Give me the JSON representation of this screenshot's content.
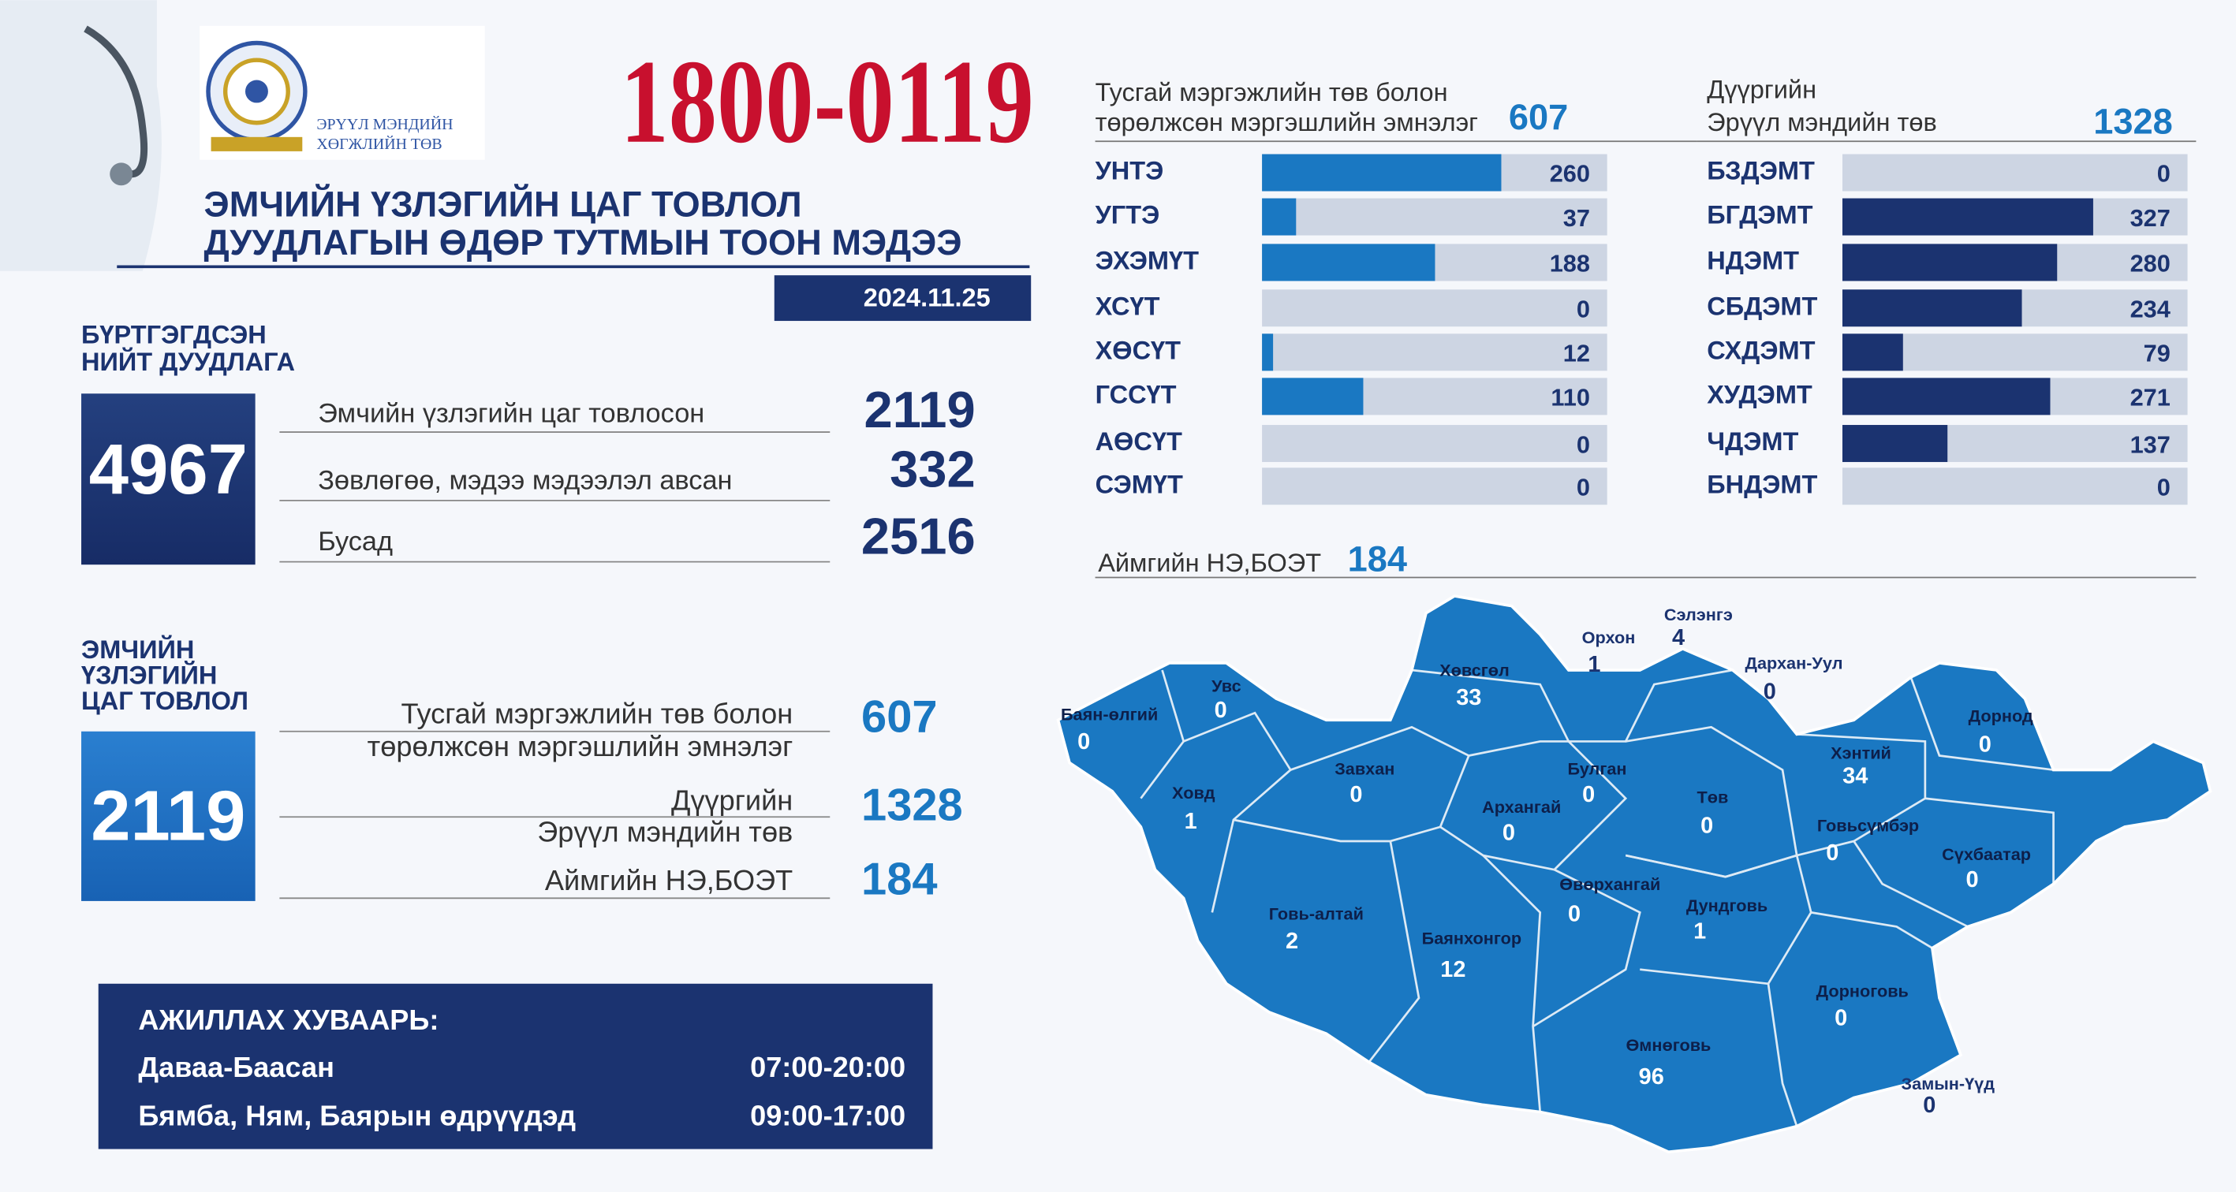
{
  "header": {
    "org": [
      "ЭРҮҮЛ МЭНДИЙН",
      "ХӨГЖЛИЙН ТӨВ"
    ],
    "phone": "1800-0119",
    "title": [
      "ЭМЧИЙН ҮЗЛЭГИЙН ЦАГ  ТОВЛОЛ",
      "ДУУДЛАГЫН ӨДӨР ТУТМЫН ТООН МЭДЭЭ"
    ],
    "date": "2024.11.25"
  },
  "total": {
    "label": [
      "БҮРТГЭГДСЭН",
      "НИЙТ ДУУДЛАГА"
    ],
    "value": 4967,
    "rows": [
      {
        "label": "Эмчийн үзлэгийн цаг товлосон",
        "value": 2119
      },
      {
        "label": "Зөвлөгөө, мэдээ мэдээлэл авсан",
        "value": 332
      },
      {
        "label": "Бусад",
        "value": 2516
      }
    ]
  },
  "appointments": {
    "label": [
      "ЭМЧИЙН",
      "ҮЗЛЭГИЙН",
      "ЦАГ ТОВЛОЛ"
    ],
    "value": 2119,
    "rows": [
      {
        "label": [
          "Тусгай мэргэжлийн төв болон",
          "төрөлжсөн мэргэшлийн эмнэлэг"
        ],
        "value": 607
      },
      {
        "label": [
          "Дүүргийн",
          "Эрүүл мэндийн төв"
        ],
        "value": 1328
      },
      {
        "label": [
          "Аймгийн НЭ,БОЭТ"
        ],
        "value": 184
      }
    ]
  },
  "charts": [
    {
      "type": "bar",
      "title": [
        "Тусгай мэргэжлийн төв болон",
        "төрөлжсөн мэргэшлийн эмнэлэг"
      ],
      "total": 607,
      "categories": [
        "УНТЭ",
        "УГТЭ",
        "ЭХЭМҮТ",
        "ХСҮТ",
        "ХӨСҮТ",
        "ГССҮТ",
        "АӨСҮТ",
        "СЭМҮТ"
      ],
      "values": [
        260,
        37,
        188,
        0,
        12,
        110,
        0,
        0
      ],
      "color": "#1a78c2",
      "xlim": [
        0,
        375
      ]
    },
    {
      "type": "bar",
      "title": [
        "Дүүргийн",
        "Эрүүл мэндийн төв"
      ],
      "total": 1328,
      "categories": [
        "БЗДЭМТ",
        "БГДЭМТ",
        "НДЭМТ",
        "СБДЭМТ",
        "СХДЭМТ",
        "ХУДЭМТ",
        "ЧДЭМТ",
        "БНДЭМТ"
      ],
      "values": [
        0,
        327,
        280,
        234,
        79,
        271,
        137,
        0
      ],
      "color": "#1b3370",
      "xlim": [
        0,
        450
      ]
    }
  ],
  "map": {
    "title": "Аймгийн НЭ,БОЭТ",
    "total": 184,
    "regions": [
      {
        "name": "Баян-өлгий",
        "value": 0
      },
      {
        "name": "Увс",
        "value": 0
      },
      {
        "name": "Ховд",
        "value": 1
      },
      {
        "name": "Завхан",
        "value": 0
      },
      {
        "name": "Хөвсгөл",
        "value": 33
      },
      {
        "name": "Орхон",
        "value": 1
      },
      {
        "name": "Сэлэнгэ",
        "value": 4
      },
      {
        "name": "Дархан-Уул",
        "value": 0
      },
      {
        "name": "Булган",
        "value": 0
      },
      {
        "name": "Архангай",
        "value": 0
      },
      {
        "name": "Төв",
        "value": 0
      },
      {
        "name": "Хэнтий",
        "value": 34
      },
      {
        "name": "Дорнод",
        "value": 0
      },
      {
        "name": "Говьсүмбэр",
        "value": 0
      },
      {
        "name": "Сүхбаатар",
        "value": 0
      },
      {
        "name": "Говь-алтай",
        "value": 2
      },
      {
        "name": "Баянхонгор",
        "value": 12
      },
      {
        "name": "Өвөрхангай",
        "value": 0
      },
      {
        "name": "Дундговь",
        "value": 1
      },
      {
        "name": "Дорноговь",
        "value": 0
      },
      {
        "name": "Өмнөговь",
        "value": 96
      },
      {
        "name": "Замын-Үүд",
        "value": 0
      }
    ]
  },
  "schedule": {
    "title": "АЖИЛЛАХ ХУВААРЬ:",
    "rows": [
      {
        "day": "Даваа-Баасан",
        "hours": "07:00-20:00"
      },
      {
        "day": "Бямба, Ням, Баярын өдрүүдэд",
        "hours": "09:00-17:00"
      }
    ]
  }
}
